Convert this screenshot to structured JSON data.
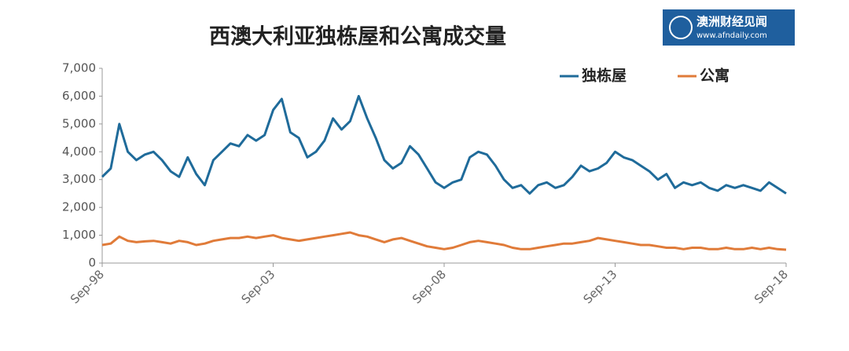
{
  "chart_data": {
    "type": "line",
    "title": "西澳大利亚独栋屋和公寓成交量",
    "logo": {
      "name": "澳洲财经见闻",
      "url": "www.afndaily.com"
    },
    "legend": "top-right",
    "categories": [
      "Sep-98",
      null,
      null,
      null,
      null,
      null,
      null,
      null,
      null,
      null,
      null,
      null,
      null,
      null,
      null,
      null,
      null,
      null,
      null,
      null,
      "Sep-03",
      null,
      null,
      null,
      null,
      null,
      null,
      null,
      null,
      null,
      null,
      null,
      null,
      null,
      null,
      null,
      null,
      null,
      null,
      null,
      "Sep-08",
      null,
      null,
      null,
      null,
      null,
      null,
      null,
      null,
      null,
      null,
      null,
      null,
      null,
      null,
      null,
      null,
      null,
      null,
      null,
      "Sep-13",
      null,
      null,
      null,
      null,
      null,
      null,
      null,
      null,
      null,
      null,
      null,
      null,
      null,
      null,
      null,
      null,
      null,
      null,
      null,
      "Sep-18"
    ],
    "series": [
      {
        "name": "独栋屋",
        "color": "#1f6b9a",
        "values": [
          3100,
          3400,
          5000,
          4000,
          3700,
          3900,
          4000,
          3700,
          3300,
          3100,
          3800,
          3200,
          2800,
          3700,
          4000,
          4300,
          4200,
          4600,
          4400,
          4600,
          5500,
          5900,
          4700,
          4500,
          3800,
          4000,
          4400,
          5200,
          4800,
          5100,
          6000,
          5200,
          4500,
          3700,
          3400,
          3600,
          4200,
          3900,
          3400,
          2900,
          2700,
          2900,
          3000,
          3800,
          4000,
          3900,
          3500,
          3000,
          2700,
          2800,
          2500,
          2800,
          2900,
          2700,
          2800,
          3100,
          3500,
          3300,
          3400,
          3600,
          4000,
          3800,
          3700,
          3500,
          3300,
          3000,
          3200,
          2700,
          2900,
          2800,
          2900,
          2700,
          2600,
          2800,
          2700,
          2800,
          2700,
          2600,
          2900,
          2700,
          2500
        ]
      },
      {
        "name": "公寓",
        "color": "#e07b39",
        "values": [
          650,
          700,
          950,
          800,
          750,
          780,
          800,
          750,
          700,
          800,
          750,
          650,
          700,
          800,
          850,
          900,
          900,
          950,
          900,
          950,
          1000,
          900,
          850,
          800,
          850,
          900,
          950,
          1000,
          1050,
          1100,
          1000,
          950,
          850,
          750,
          850,
          900,
          800,
          700,
          600,
          550,
          500,
          550,
          650,
          750,
          800,
          750,
          700,
          650,
          550,
          500,
          500,
          550,
          600,
          650,
          700,
          700,
          750,
          800,
          900,
          850,
          800,
          750,
          700,
          650,
          650,
          600,
          550,
          550,
          500,
          550,
          550,
          500,
          500,
          550,
          500,
          500,
          550,
          500,
          550,
          500,
          480
        ]
      }
    ],
    "ylim": [
      0,
      7000
    ],
    "yticks": [
      0,
      {
        "value": 1000,
        "label": "1,000"
      },
      {
        "value": 2000,
        "label": "2,000"
      },
      {
        "value": 3000,
        "label": "3,000"
      },
      {
        "value": 4000,
        "label": "4,000"
      },
      {
        "value": 5000,
        "label": "5,000"
      },
      {
        "value": 6000,
        "label": "6,000"
      },
      {
        "value": 7000,
        "label": "7,000"
      }
    ],
    "grid": false
  }
}
